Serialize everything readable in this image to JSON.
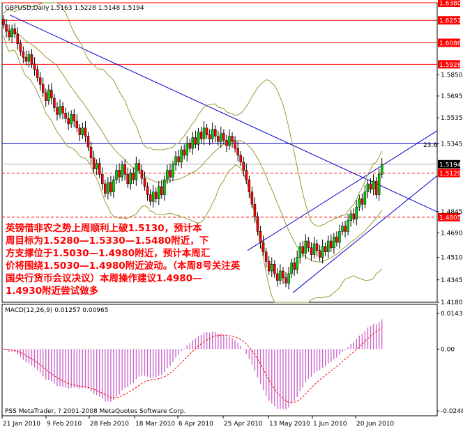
{
  "header": {
    "symbol": "GBPUSD,Daily",
    "ohlc": "1.5163 1.5228 1.5148 1.5194"
  },
  "macd_header": "MACD(12,26,9) 0.01257 0.00965",
  "copyright": "PSS MetaTrader, ? 2001-2008 MetaQuotes Software Corp.",
  "annotation": {
    "lines": [
      "英镑借非农之势上周顺利上破1.5130，预计本",
      "周目标为1.5280—1.5330—1.5480附近，下",
      "方支撑位于1.5030—1.4980附近，预计本周汇",
      "价将围绕1.5030—1.4980附近波动。（本周8号关注英",
      "国央行货币会议决议）本周操作建议1.4980—",
      "1.4930附近尝试做多"
    ]
  },
  "colors": {
    "bull": "#00cc00",
    "bear": "#ff0000",
    "band": "#999933",
    "trend": "#0000cc",
    "level": "#ff0000",
    "macd_hist": "#cc66cc",
    "macd_signal": "#ff0000"
  },
  "chart_data": {
    "type": "candlestick",
    "price_axis": {
      "range": [
        1.418,
        1.638
      ],
      "ticks": [
        "1.6380",
        "1.6251",
        "1.6086",
        "1.5928",
        "1.5850",
        "1.5695",
        "1.5535",
        "1.5345",
        "1.5194",
        "1.5129",
        "1.4845",
        "1.4805",
        "1.4690",
        "1.4510",
        "1.4345",
        "1.4180"
      ]
    },
    "x_axis": {
      "labels": [
        "21 Jan 2010",
        "9 Feb 2010",
        "28 Feb 2010",
        "18 Mar 2010",
        "6 Apr 2010",
        "25 Apr 2010",
        "13 May 2010",
        "1 Jun 2010",
        "20 Jun 2010"
      ]
    },
    "levels": [
      {
        "value": 1.638,
        "label": "1.6380",
        "style": "solid"
      },
      {
        "value": 1.6251,
        "label": "1.6251",
        "style": "solid"
      },
      {
        "value": 1.6086,
        "label": "1.6086",
        "style": "solid"
      },
      {
        "value": 1.5928,
        "label": "1.5928",
        "style": "solid"
      },
      {
        "value": 1.5129,
        "label": "1.5129",
        "style": "dashed"
      },
      {
        "value": 1.4805,
        "label": "1.4805",
        "style": "dashed"
      }
    ],
    "current_price": {
      "value": 1.5194,
      "label": "1.5194"
    },
    "fib_label": "23.6",
    "closes": [
      1.622,
      1.617,
      1.613,
      1.619,
      1.615,
      1.608,
      1.602,
      1.598,
      1.595,
      1.6,
      1.593,
      1.589,
      1.583,
      1.578,
      1.572,
      1.566,
      1.574,
      1.568,
      1.561,
      1.556,
      1.562,
      1.557,
      1.553,
      1.549,
      1.556,
      1.551,
      1.546,
      1.541,
      1.546,
      1.54,
      1.532,
      1.524,
      1.516,
      1.52,
      1.512,
      1.505,
      1.498,
      1.506,
      1.499,
      1.508,
      1.515,
      1.51,
      1.519,
      1.512,
      1.505,
      1.513,
      1.508,
      1.52,
      1.515,
      1.509,
      1.503,
      1.497,
      1.492,
      1.499,
      1.494,
      1.503,
      1.497,
      1.508,
      1.515,
      1.51,
      1.519,
      1.525,
      1.521,
      1.53,
      1.526,
      1.535,
      1.531,
      1.539,
      1.534,
      1.543,
      1.538,
      1.546,
      1.541,
      1.538,
      1.545,
      1.54,
      1.536,
      1.542,
      1.537,
      1.533,
      1.54,
      1.536,
      1.531,
      1.526,
      1.521,
      1.515,
      1.508,
      1.499,
      1.49,
      1.481,
      1.47,
      1.462,
      1.455,
      1.448,
      1.441,
      1.446,
      1.439,
      1.434,
      1.441,
      1.436,
      1.432,
      1.439,
      1.447,
      1.442,
      1.451,
      1.459,
      1.454,
      1.463,
      1.458,
      1.453,
      1.461,
      1.456,
      1.451,
      1.459,
      1.455,
      1.463,
      1.458,
      1.466,
      1.462,
      1.47,
      1.474,
      1.47,
      1.478,
      1.483,
      1.479,
      1.488,
      1.494,
      1.49,
      1.499,
      1.505,
      1.501,
      1.507,
      1.497,
      1.512,
      1.519
    ],
    "macd": {
      "axis_ticks": [
        "0.01435",
        "0.00",
        "-0.02482"
      ],
      "range": [
        -0.02482,
        0.01435
      ]
    }
  }
}
